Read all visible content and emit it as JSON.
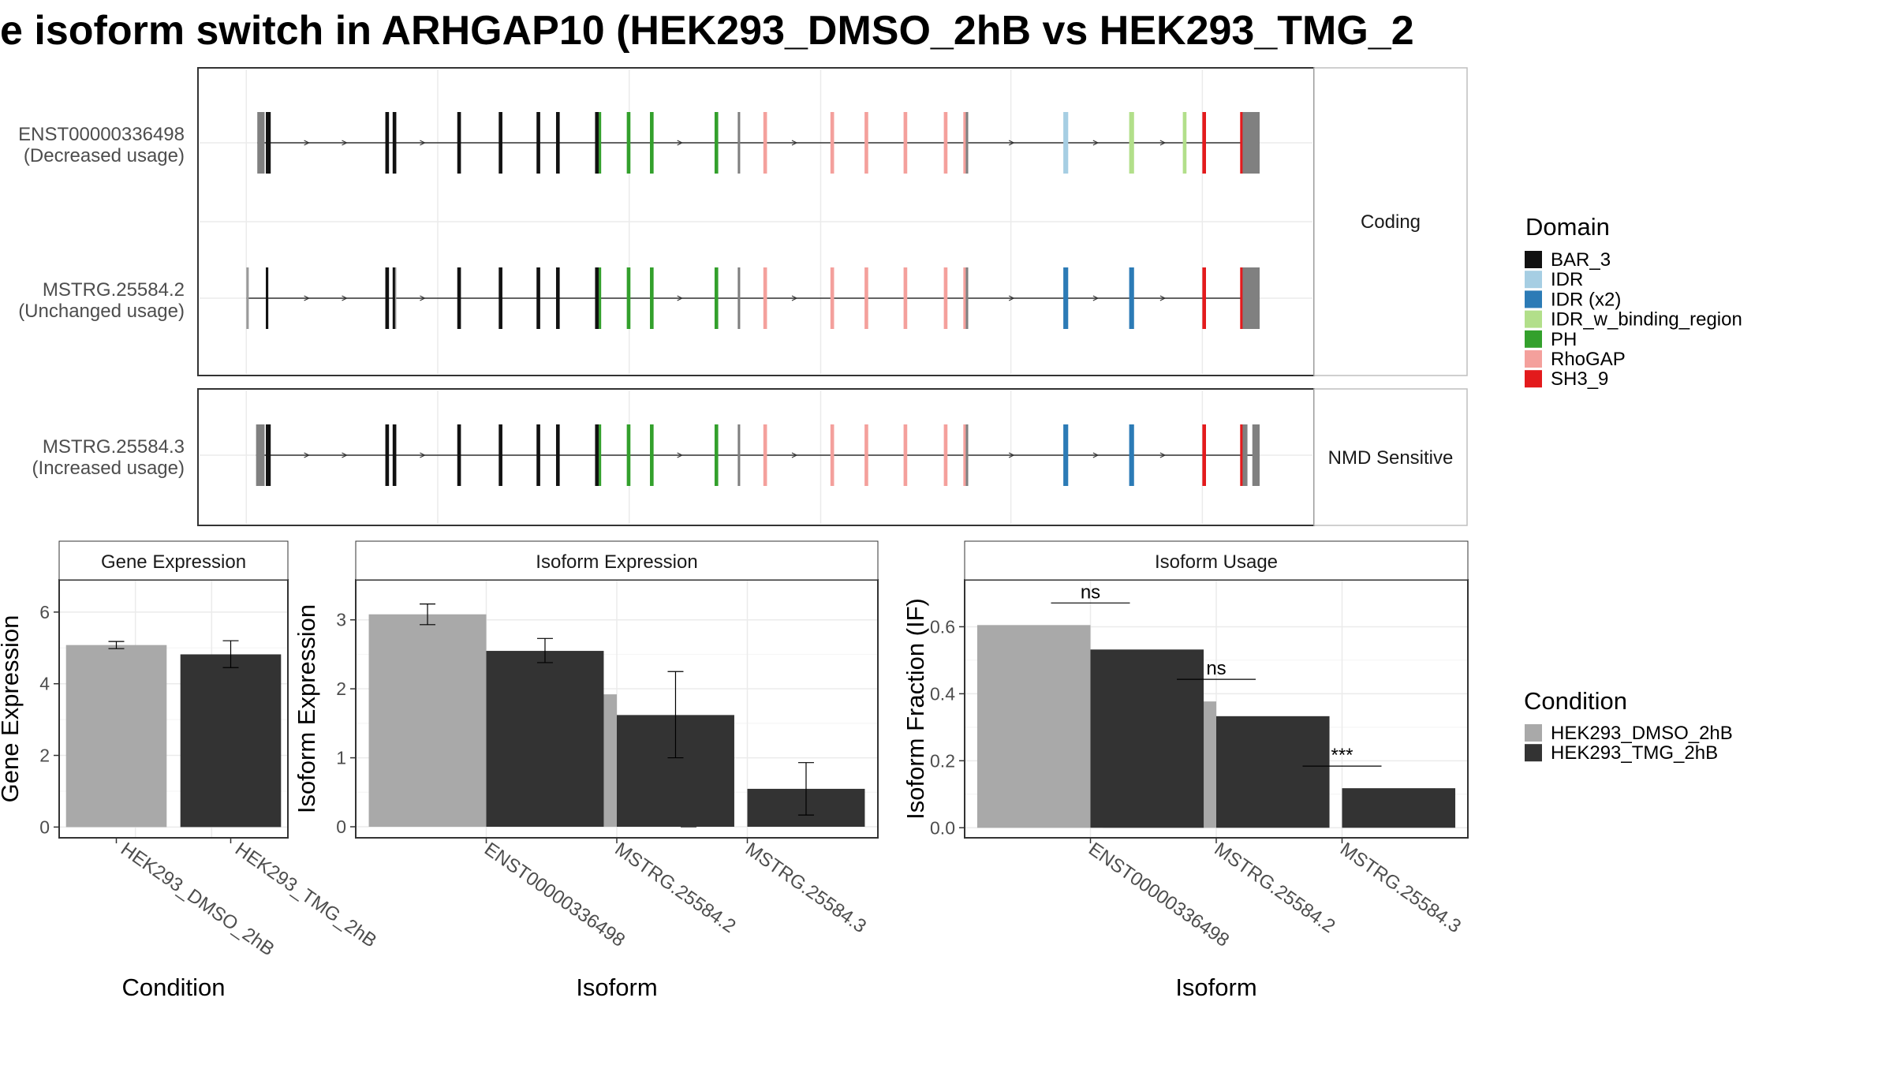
{
  "title": "e isoform switch in ARHGAP10 (HEK293_DMSO_2hB vs HEK293_TMG_2",
  "colors": {
    "BAR_3": "#111111",
    "IDR": "#a6cee3",
    "IDR (x2)": "#2c7bb6",
    "IDR_w_binding_region": "#b2df8a",
    "PH": "#33a02c",
    "RhoGAP": "#f4a09c",
    "SH3_9": "#e31a1c",
    "none": "#808080",
    "dmso": "#a9a9a9",
    "tmg": "#333333"
  },
  "structure": {
    "facets": [
      "Coding",
      "NMD Sensitive"
    ],
    "isoforms": [
      {
        "id": "ENST00000336498",
        "usage": "(Decreased usage)",
        "facet": "Coding"
      },
      {
        "id": "MSTRG.25584.2",
        "usage": "(Unchanged usage)",
        "facet": "Coding"
      },
      {
        "id": "MSTRG.25584.3",
        "usage": "(Increased usage)",
        "facet": "NMD Sensitive"
      }
    ]
  },
  "legend_domain": {
    "title": "Domain",
    "items": [
      "BAR_3",
      "IDR",
      "IDR (x2)",
      "IDR_w_binding_region",
      "PH",
      "RhoGAP",
      "SH3_9"
    ]
  },
  "legend_condition": {
    "title": "Condition",
    "items": [
      "HEK293_DMSO_2hB",
      "HEK293_TMG_2hB"
    ]
  },
  "chart_data": [
    {
      "type": "bar",
      "title": "Gene Expression",
      "xlabel": "Condition",
      "ylabel": "Gene Expression",
      "categories": [
        "HEK293_DMSO_2hB",
        "HEK293_TMG_2hB"
      ],
      "values": [
        5.08,
        4.82
      ],
      "errors": [
        [
          4.98,
          5.18
        ],
        [
          4.45,
          5.2
        ]
      ],
      "ylim": [
        -0.3,
        6.9
      ],
      "yticks": [
        0,
        2,
        4,
        6
      ]
    },
    {
      "type": "bar",
      "title": "Isoform Expression",
      "xlabel": "Isoform",
      "ylabel": "Isoform Expression",
      "categories": [
        "ENST00000336498",
        "MSTRG.25584.2",
        "MSTRG.25584.3"
      ],
      "series": [
        {
          "name": "HEK293_DMSO_2hB",
          "values": [
            3.08,
            1.92,
            0.0
          ],
          "errors": [
            [
              2.93,
              3.23
            ],
            [
              1.81,
              2.03
            ],
            [
              0.0,
              0.0
            ]
          ]
        },
        {
          "name": "HEK293_TMG_2hB",
          "values": [
            2.55,
            1.62,
            0.55
          ],
          "errors": [
            [
              2.38,
              2.73
            ],
            [
              1.0,
              2.25
            ],
            [
              0.17,
              0.93
            ]
          ]
        }
      ],
      "ylim": [
        -0.16,
        3.58
      ],
      "yticks": [
        0,
        1,
        2,
        3
      ]
    },
    {
      "type": "bar",
      "title": "Isoform Usage",
      "xlabel": "Isoform",
      "ylabel": "Isoform Fraction (IF)",
      "categories": [
        "ENST00000336498",
        "MSTRG.25584.2",
        "MSTRG.25584.3"
      ],
      "series": [
        {
          "name": "HEK293_DMSO_2hB",
          "values": [
            0.605,
            0.377,
            0.0
          ]
        },
        {
          "name": "HEK293_TMG_2hB",
          "values": [
            0.532,
            0.333,
            0.118
          ]
        }
      ],
      "annotations": [
        "ns",
        "ns",
        "***"
      ],
      "ylim": [
        -0.03,
        0.74
      ],
      "yticks": [
        "0.0",
        "0.2",
        "0.4",
        "0.6"
      ]
    }
  ]
}
